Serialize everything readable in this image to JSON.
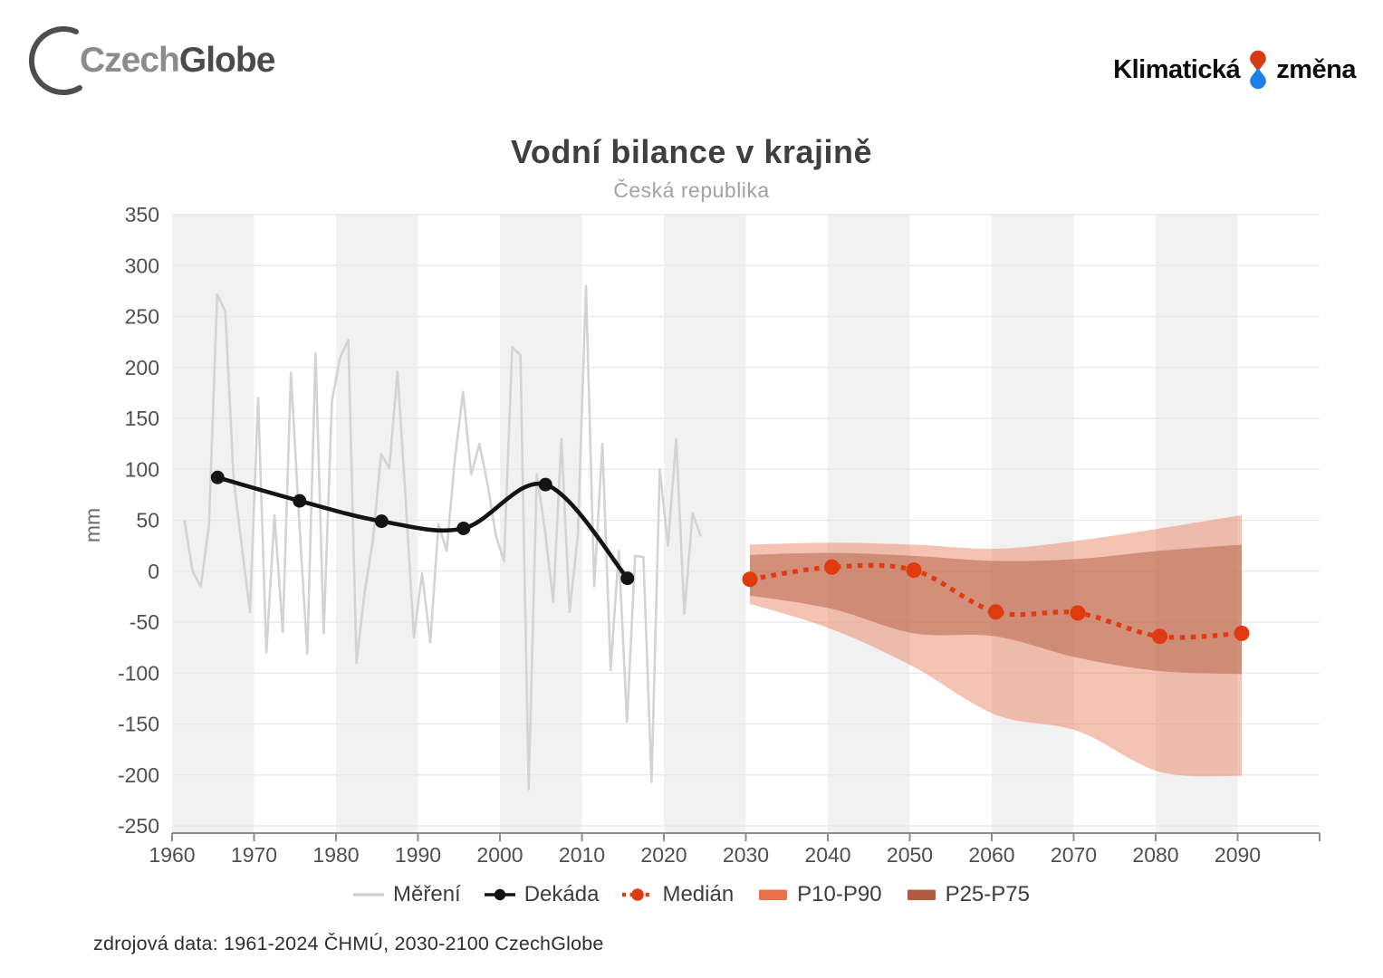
{
  "header": {
    "logo_left": {
      "text_primary": "Czech",
      "text_secondary": "Globe"
    },
    "logo_right": {
      "word1": "Klimatická",
      "word2": "změna"
    }
  },
  "title": "Vodní bilance v krajině",
  "subtitle": "Česká republika",
  "footer": "zdrojová data: 1961-2024 ČHMÚ, 2030-2100 CzechGlobe",
  "colors": {
    "stripe": "#f1f1f1",
    "gridline": "#e8e8e8",
    "axis": "#8c8c8c",
    "tick_label": "#4f4f4f",
    "axis_unit": "#6a6a6a",
    "mereni": "#d3d3d3",
    "dekada": "#141414",
    "median": "#e03a10",
    "band_outer": "#e8714a",
    "band_inner": "#b05b41",
    "logo_red": "#d53c15",
    "logo_blue": "#1c80e4"
  },
  "legend": [
    {
      "label": "Měření",
      "swatch": "line",
      "color": "#cfcfcf"
    },
    {
      "label": "Dekáda",
      "swatch": "line-dot",
      "color": "#141414"
    },
    {
      "label": "Medián",
      "swatch": "dotted-dot",
      "color": "#e03a10"
    },
    {
      "label": "P10-P90",
      "swatch": "rect",
      "color": "#e8714a"
    },
    {
      "label": "P25-P75",
      "swatch": "rect",
      "color": "#b05b41"
    }
  ],
  "chart_data": {
    "type": "line",
    "title": "Vodní bilance v krajině",
    "subtitle": "Česká republika",
    "xlabel": "",
    "ylabel": "mm",
    "xlim": [
      1960,
      2100
    ],
    "ylim": [
      -250,
      350
    ],
    "grid": "horizontal",
    "legend_position": "bottom",
    "y_ticks": [
      350,
      300,
      250,
      200,
      150,
      100,
      50,
      0,
      -50,
      -100,
      -150,
      -200,
      -250
    ],
    "x_ticks": [
      1960,
      1970,
      1980,
      1990,
      2000,
      2010,
      2020,
      2030,
      2040,
      2050,
      2060,
      2070,
      2080,
      2090
    ],
    "decade_stripes": [
      1960,
      1980,
      2000,
      2020,
      2040,
      2060,
      2080
    ],
    "series": [
      {
        "name": "Měření",
        "type": "line",
        "start_year": 1961,
        "end_year": 2024,
        "values": [
          50,
          0,
          -15,
          45,
          272,
          255,
          90,
          25,
          -40,
          170,
          -80,
          55,
          -60,
          195,
          50,
          -81,
          214,
          -61,
          167,
          210,
          227,
          -90,
          -20,
          30,
          115,
          101,
          196,
          70,
          -65,
          -2,
          -70,
          46,
          20,
          110,
          176,
          95,
          125,
          85,
          35,
          10,
          220,
          212,
          -214,
          95,
          40,
          -30,
          130,
          -40,
          35,
          280,
          -15,
          125,
          -97,
          20,
          -148,
          15,
          14,
          -207,
          100,
          25,
          130,
          -42,
          57,
          34
        ]
      },
      {
        "name": "Dekáda",
        "type": "smooth-line-markers",
        "x": [
          1965,
          1975,
          1985,
          1995,
          2005,
          2015
        ],
        "values": [
          92,
          69,
          49,
          42,
          85,
          -7
        ]
      },
      {
        "name": "Medián",
        "type": "dotted-line-markers",
        "x": [
          2030,
          2040,
          2050,
          2060,
          2070,
          2080,
          2090
        ],
        "values": [
          -8,
          4,
          1,
          -40,
          -41,
          -64,
          -61
        ]
      },
      {
        "name": "P10-P90",
        "type": "band",
        "x": [
          2030,
          2040,
          2050,
          2060,
          2070,
          2080,
          2090
        ],
        "upper": [
          26,
          28,
          26,
          22,
          30,
          42,
          55
        ],
        "lower": [
          -32,
          -57,
          -94,
          -141,
          -157,
          -197,
          -201
        ]
      },
      {
        "name": "P25-P75",
        "type": "band",
        "x": [
          2030,
          2040,
          2050,
          2060,
          2070,
          2080,
          2090
        ],
        "upper": [
          16,
          18,
          15,
          10,
          12,
          20,
          26
        ],
        "lower": [
          -24,
          -37,
          -61,
          -64,
          -85,
          -98,
          -101
        ]
      }
    ]
  }
}
